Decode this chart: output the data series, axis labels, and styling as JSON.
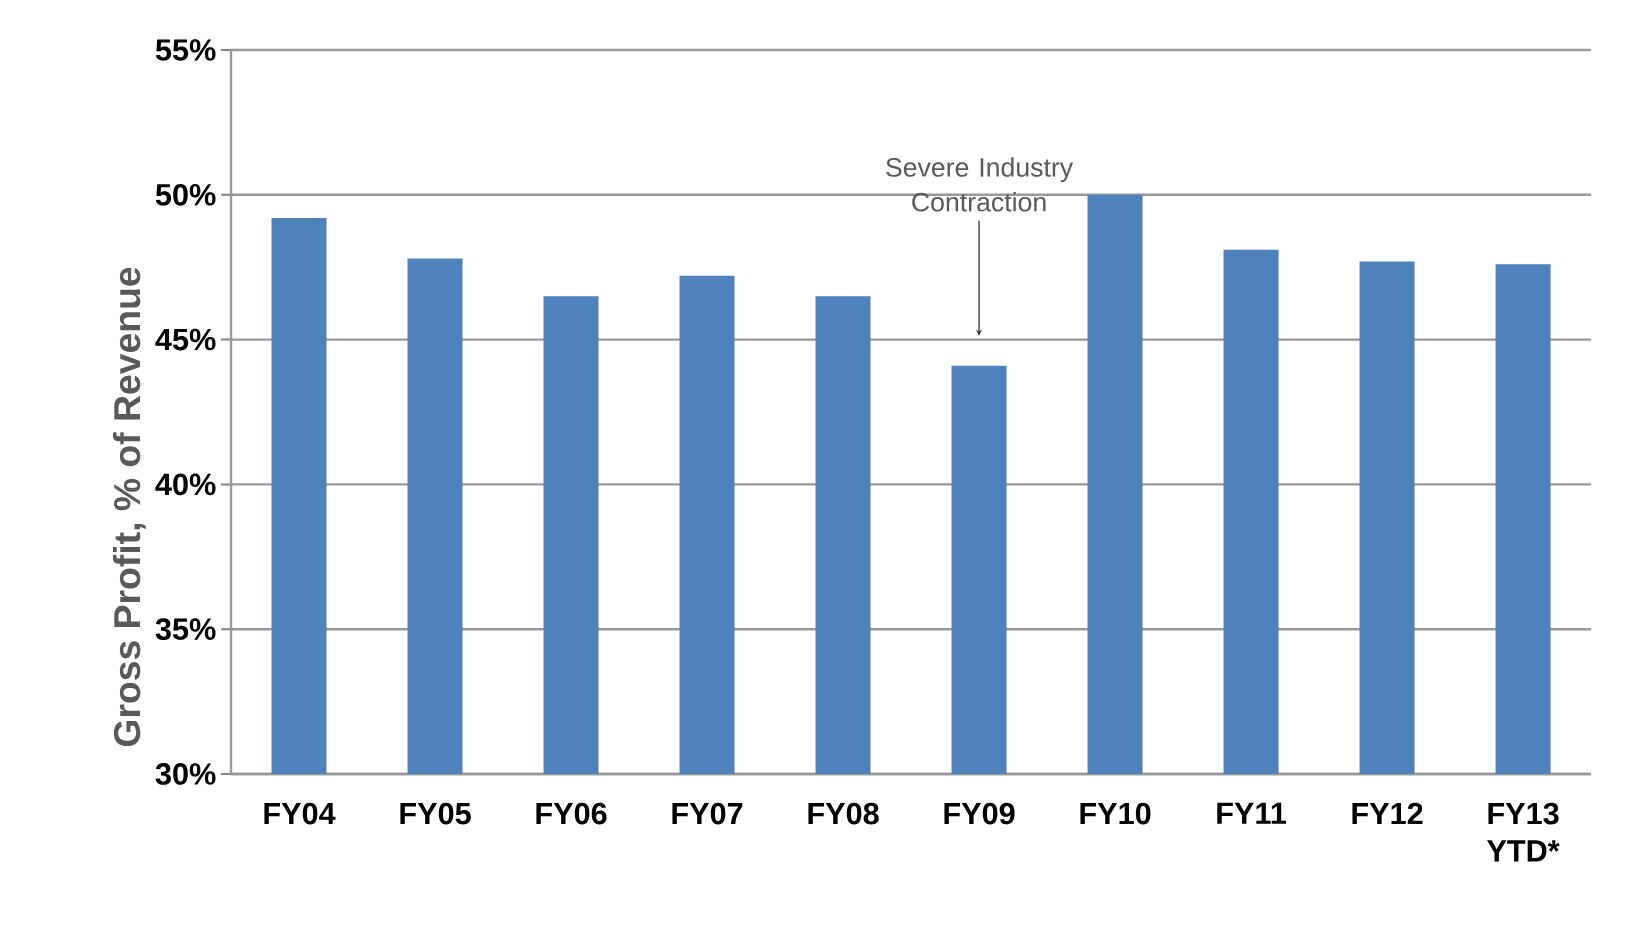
{
  "chart_data": {
    "type": "bar",
    "ylabel": "Gross Profit, % of Revenue",
    "categories": [
      "FY04",
      "FY05",
      "FY06",
      "FY07",
      "FY08",
      "FY09",
      "FY10",
      "FY11",
      "FY12",
      "FY13 YTD*"
    ],
    "values": [
      49.2,
      47.8,
      46.5,
      47.2,
      46.5,
      44.1,
      50.0,
      48.1,
      47.7,
      47.6
    ],
    "color": "#4f81bd",
    "ylim": [
      30,
      55
    ],
    "yticks": [
      {
        "value": 30,
        "label": "30%"
      },
      {
        "value": 35,
        "label": "35%"
      },
      {
        "value": 40,
        "label": "40%"
      },
      {
        "value": 45,
        "label": "45%"
      },
      {
        "value": 50,
        "label": "50%"
      },
      {
        "value": 55,
        "label": "55%"
      }
    ],
    "grid": "y",
    "annotations": [
      "Severe Industry Contraction"
    ]
  }
}
